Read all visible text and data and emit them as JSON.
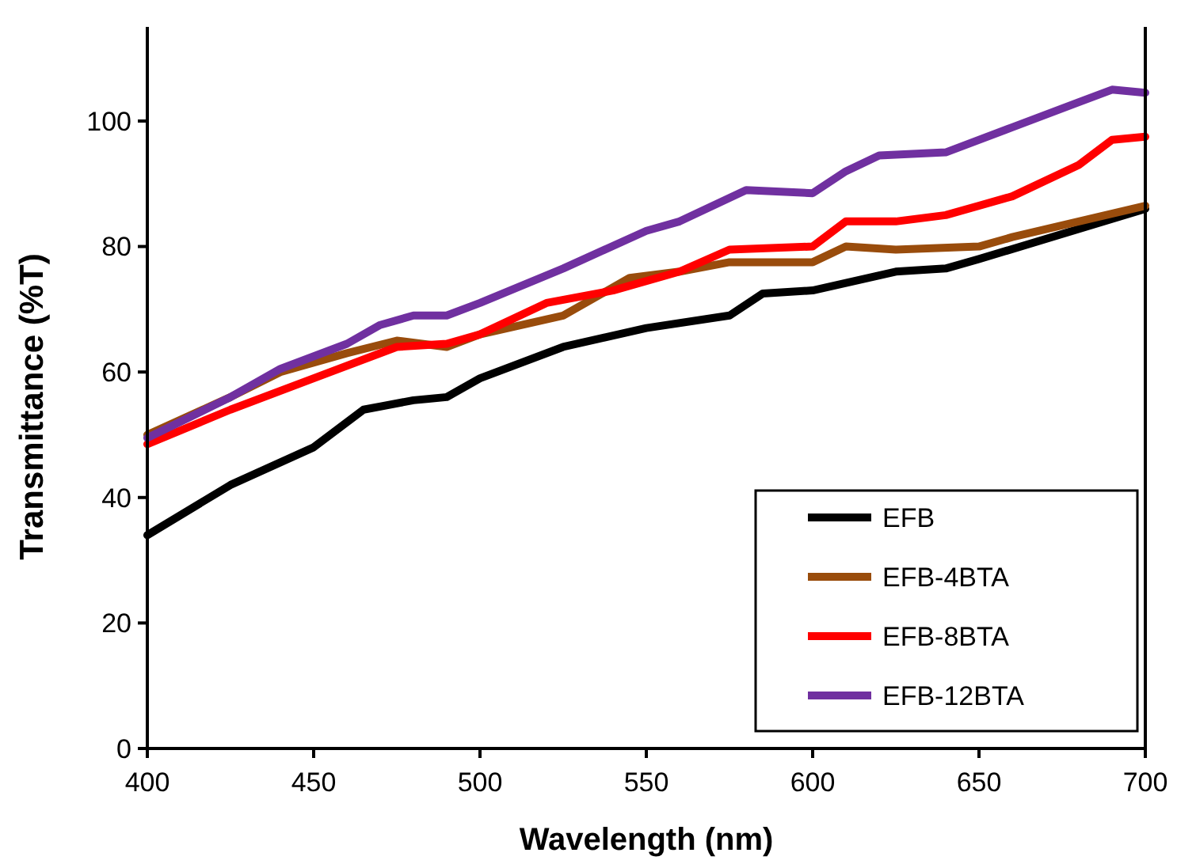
{
  "chart_data": {
    "type": "line",
    "xlabel": "Wavelength (nm)",
    "ylabel": "Transmittance (%T)",
    "xlim": [
      400,
      700
    ],
    "xticks": [
      400,
      450,
      500,
      550,
      600,
      650,
      700
    ],
    "ylim": [
      0,
      115
    ],
    "yticks": [
      0,
      20,
      40,
      60,
      80,
      100
    ],
    "legend": "bottom right",
    "grid": false,
    "marker": "none",
    "series": [
      {
        "name": "EFB",
        "color": "#000000",
        "x": [
          400,
          425,
          450,
          465,
          480,
          490,
          500,
          525,
          550,
          575,
          585,
          600,
          625,
          640,
          650,
          675,
          700
        ],
        "values": [
          34,
          42,
          48,
          54,
          55.5,
          56,
          59,
          64,
          67,
          69,
          72.5,
          73,
          76,
          76.5,
          78,
          82,
          86
        ]
      },
      {
        "name": "EFB-4BTA",
        "color": "#994c0c",
        "x": [
          400,
          425,
          440,
          460,
          475,
          490,
          500,
          525,
          545,
          560,
          575,
          600,
          610,
          625,
          650,
          660,
          700
        ],
        "values": [
          50,
          56,
          60,
          63,
          65,
          64,
          66,
          69,
          75,
          76,
          77.5,
          77.5,
          80,
          79.5,
          80,
          81.5,
          86.5
        ]
      },
      {
        "name": "EFB-8BTA",
        "color": "#ff0000",
        "x": [
          400,
          425,
          450,
          475,
          490,
          500,
          520,
          540,
          560,
          575,
          600,
          610,
          625,
          640,
          660,
          680,
          690,
          700
        ],
        "values": [
          48.5,
          54,
          59,
          64,
          64.5,
          66,
          71,
          73,
          76,
          79.5,
          80,
          84,
          84,
          85,
          88,
          93,
          97,
          97.5
        ]
      },
      {
        "name": "EFB-12BTA",
        "color": "#7030a0",
        "x": [
          400,
          425,
          440,
          460,
          470,
          480,
          490,
          500,
          525,
          550,
          560,
          580,
          600,
          610,
          620,
          640,
          660,
          680,
          690,
          700
        ],
        "values": [
          49.5,
          56,
          60.5,
          64.5,
          67.5,
          69,
          69,
          71,
          76.5,
          82.5,
          84,
          89,
          88.5,
          92,
          94.5,
          95,
          99,
          103,
          105,
          104.5
        ]
      }
    ]
  }
}
